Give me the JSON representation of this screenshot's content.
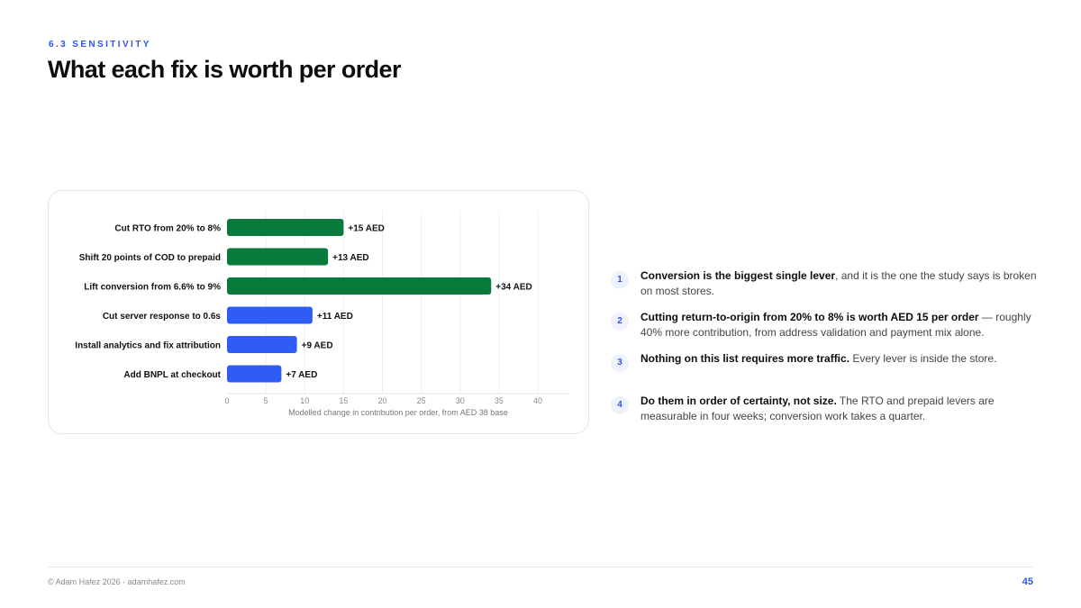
{
  "header": {
    "eyebrow": "6.3 SENSITIVITY",
    "title": "What each fix is worth per order"
  },
  "chart_data": {
    "type": "bar",
    "orientation": "horizontal",
    "categories": [
      "Cut RTO from 20% to 8%",
      "Shift 20 points of COD to prepaid",
      "Lift conversion from 6.6% to 9%",
      "Cut server response to 0.6s",
      "Install analytics and fix attribution",
      "Add BNPL at checkout"
    ],
    "values": [
      15,
      13,
      34,
      11,
      9,
      7
    ],
    "data_labels": [
      "+15 AED",
      "+13 AED",
      "+34 AED",
      "+11 AED",
      "+9 AED",
      "+7 AED"
    ],
    "bar_colors": [
      "#077a3c",
      "#077a3c",
      "#077a3c",
      "#2f5cf5",
      "#2f5cf5",
      "#2f5cf5"
    ],
    "xlabel": "Modelled change in contribution per order, from AED 38 base",
    "ylabel": "",
    "xlim": [
      0,
      40
    ],
    "xticks": [
      0,
      5,
      10,
      15,
      20,
      25,
      30,
      35,
      40
    ],
    "grid": "vertical",
    "legend": "none"
  },
  "steps": [
    {
      "number": "1",
      "bold": "Conversion is the biggest single lever",
      "rest": ", and it is the one the study says is broken on most stores."
    },
    {
      "number": "2",
      "bold": "Cutting return-to-origin from 20% to 8% is worth AED 15 per order",
      "rest": " — roughly 40% more contribution, from address validation and payment mix alone."
    },
    {
      "number": "3",
      "bold": "Nothing on this list requires more traffic.",
      "rest": " Every lever is inside the store."
    },
    {
      "number": "4",
      "bold": "Do them in order of certainty, not size.",
      "rest": " The RTO and prepaid levers are measurable in four weeks; conversion work takes a quarter."
    }
  ],
  "footer": {
    "credit": "© Adam Hafez 2026 · adamhafez.com",
    "page_number": "45"
  },
  "colors": {
    "accent": "#2f56e8",
    "green_bar": "#077a3c",
    "blue_bar": "#2f5cf5"
  }
}
